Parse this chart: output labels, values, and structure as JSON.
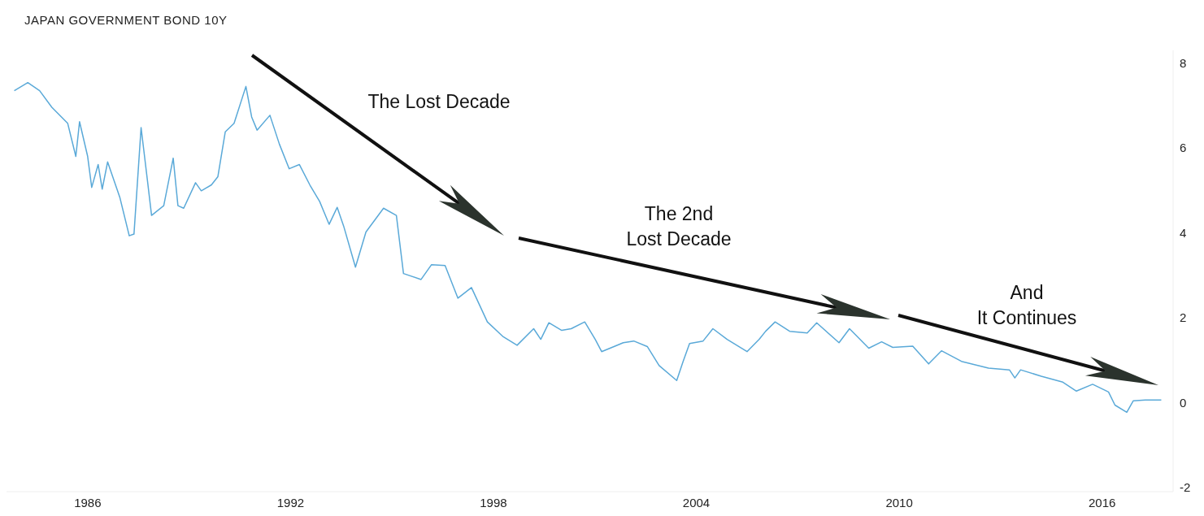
{
  "chart_data": {
    "type": "line",
    "title": "JAPAN GOVERNMENT BOND 10Y",
    "annotations": [
      "The Lost Decade",
      "The 2nd\nLost Decade",
      "And\nIt Continues"
    ],
    "x": [
      1983.83,
      1984.23,
      1984.58,
      1984.94,
      1985.41,
      1985.65,
      1985.76,
      1986.0,
      1986.12,
      1986.31,
      1986.43,
      1986.59,
      1986.95,
      1987.23,
      1987.37,
      1987.58,
      1987.77,
      1987.89,
      1988.25,
      1988.53,
      1988.67,
      1988.84,
      1989.19,
      1989.36,
      1989.66,
      1989.85,
      1990.07,
      1990.33,
      1990.68,
      1990.85,
      1991.01,
      1991.39,
      1991.67,
      1991.96,
      1992.26,
      1992.57,
      1992.86,
      1993.14,
      1993.38,
      1993.57,
      1993.92,
      1994.23,
      1994.75,
      1995.13,
      1995.34,
      1995.86,
      1996.17,
      1996.57,
      1996.95,
      1997.35,
      1997.82,
      1998.29,
      1998.7,
      1999.19,
      1999.4,
      1999.64,
      2000.02,
      2000.3,
      2000.7,
      2001.01,
      2001.2,
      2001.84,
      2002.15,
      2002.55,
      2002.9,
      2003.42,
      2003.61,
      2003.8,
      2004.2,
      2004.49,
      2004.91,
      2005.5,
      2005.86,
      2006.05,
      2006.33,
      2006.76,
      2007.28,
      2007.56,
      2008.22,
      2008.53,
      2009.1,
      2009.48,
      2009.81,
      2010.4,
      2010.87,
      2011.25,
      2011.84,
      2012.64,
      2013.26,
      2013.42,
      2013.59,
      2014.2,
      2014.84,
      2015.24,
      2015.72,
      2016.19,
      2016.38,
      2016.73,
      2016.92,
      2017.28,
      2017.75
    ],
    "series": [
      {
        "color": "#5aa9d8",
        "values": [
          7.35,
          7.54,
          7.35,
          6.96,
          6.58,
          5.8,
          6.62,
          5.8,
          5.07,
          5.61,
          5.03,
          5.67,
          4.84,
          3.93,
          3.97,
          6.48,
          5.22,
          4.41,
          4.64,
          5.76,
          4.64,
          4.58,
          5.18,
          4.99,
          5.13,
          5.32,
          6.38,
          6.58,
          7.45,
          6.73,
          6.42,
          6.77,
          6.09,
          5.51,
          5.61,
          5.13,
          4.74,
          4.2,
          4.6,
          4.16,
          3.19,
          4.02,
          4.58,
          4.41,
          3.04,
          2.9,
          3.25,
          3.23,
          2.46,
          2.71,
          1.9,
          1.55,
          1.35,
          1.74,
          1.49,
          1.88,
          1.7,
          1.74,
          1.9,
          1.49,
          1.2,
          1.41,
          1.45,
          1.32,
          0.87,
          0.52,
          0.97,
          1.39,
          1.45,
          1.74,
          1.49,
          1.2,
          1.49,
          1.68,
          1.9,
          1.68,
          1.64,
          1.88,
          1.41,
          1.74,
          1.28,
          1.43,
          1.3,
          1.33,
          0.91,
          1.22,
          0.97,
          0.81,
          0.77,
          0.58,
          0.77,
          0.62,
          0.48,
          0.27,
          0.43,
          0.25,
          -0.06,
          -0.23,
          0.04,
          0.06,
          0.06
        ]
      }
    ],
    "xlim": [
      1983.6,
      2018.1
    ],
    "xticks": [
      1986,
      1992,
      1998,
      2004,
      2010,
      2016
    ],
    "ylim": [
      -2.1,
      8.3
    ],
    "yticks": [
      -2,
      0,
      2,
      4,
      6,
      8
    ]
  }
}
